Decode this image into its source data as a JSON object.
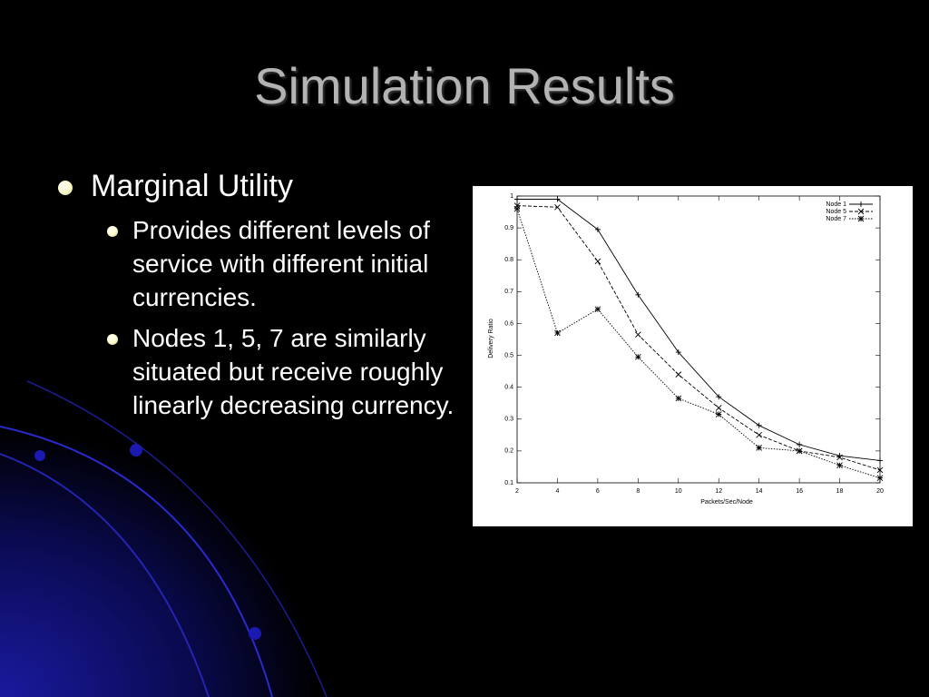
{
  "slide": {
    "title": "Simulation Results",
    "bullet": "Marginal Utility",
    "sub_bullets": [
      "Provides different levels of service with different initial currencies.",
      "Nodes 1, 5, 7 are similarly situated but receive roughly linearly decreasing currency."
    ]
  },
  "chart_data": {
    "type": "line",
    "x_label": "Packets/Sec/Node",
    "y_label": "Delivery Ratio",
    "x": [
      2,
      4,
      6,
      8,
      10,
      12,
      14,
      16,
      18,
      20
    ],
    "xlim": [
      2,
      20
    ],
    "xticks": [
      2,
      4,
      6,
      8,
      10,
      12,
      14,
      16,
      18,
      20
    ],
    "ylim": [
      0.1,
      1
    ],
    "yticks": [
      0.1,
      0.2,
      0.3,
      0.4,
      0.5,
      0.6,
      0.7,
      0.8,
      0.9,
      1
    ],
    "grid": false,
    "legend": "upper right",
    "series": [
      {
        "name": "Node 1",
        "color": "#000000",
        "line_style": "solid",
        "marker": "+",
        "values": [
          0.99,
          0.99,
          0.895,
          0.69,
          0.51,
          0.37,
          0.28,
          0.22,
          0.185,
          0.17
        ]
      },
      {
        "name": "Node 5",
        "color": "#000000",
        "line_style": "dashed",
        "marker": "x",
        "values": [
          0.97,
          0.965,
          0.795,
          0.565,
          0.44,
          0.335,
          0.25,
          0.2,
          0.18,
          0.14
        ]
      },
      {
        "name": "Node 7",
        "color": "#000000",
        "line_style": "dotted",
        "marker": "*",
        "values": [
          0.96,
          0.57,
          0.645,
          0.495,
          0.365,
          0.315,
          0.21,
          0.2,
          0.155,
          0.115
        ]
      }
    ]
  }
}
